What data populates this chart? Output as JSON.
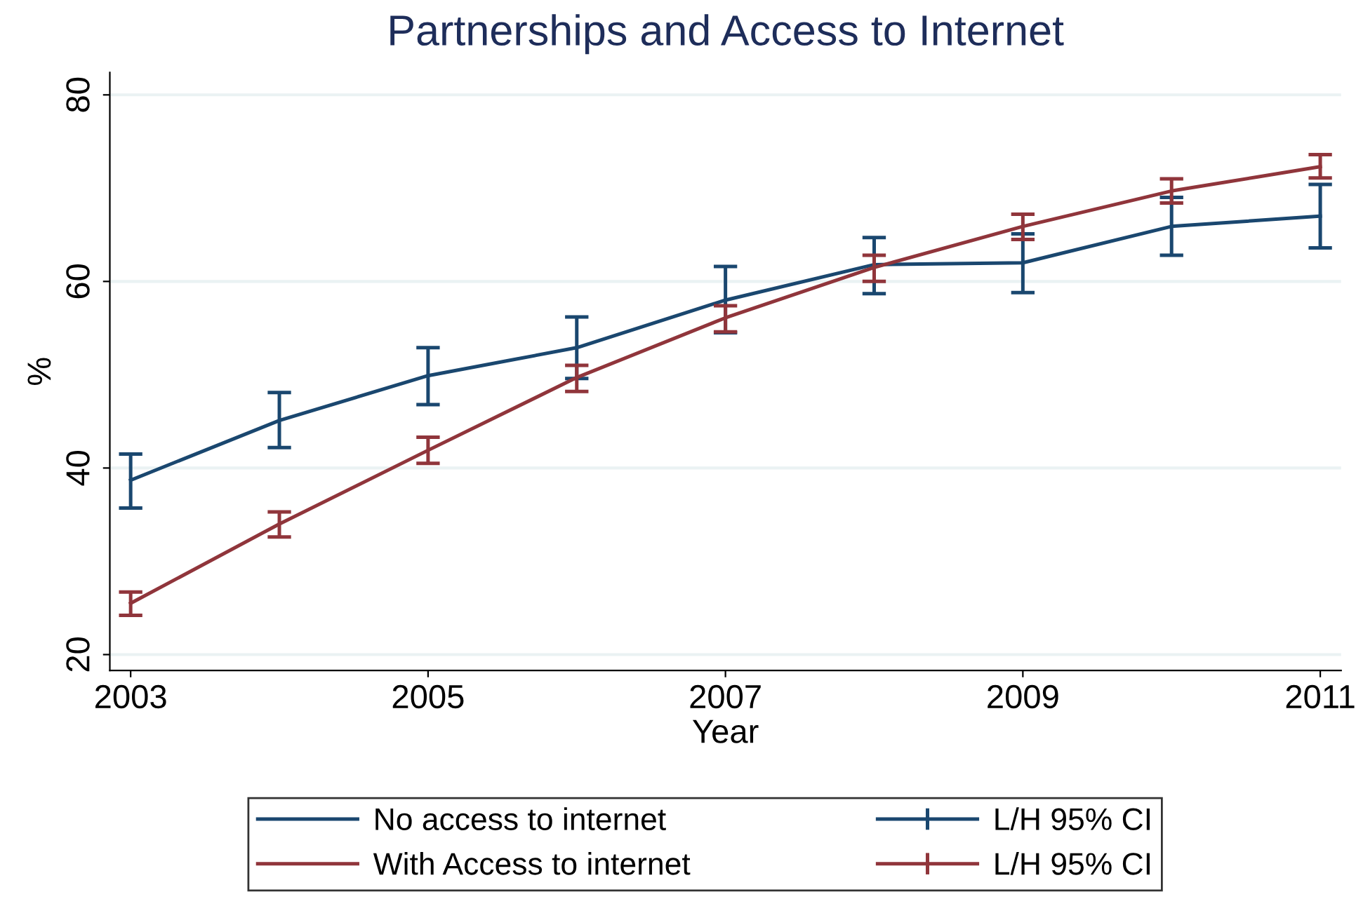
{
  "chart_data": {
    "type": "line",
    "title": "Partnerships and Access to Internet",
    "xlabel": "Year",
    "ylabel": "%",
    "x": [
      2003,
      2004,
      2005,
      2006,
      2007,
      2008,
      2009,
      2010,
      2011
    ],
    "series": [
      {
        "name": "No access to internet",
        "color": "#1a476f",
        "values": [
          38.7,
          45.1,
          49.9,
          52.9,
          58.0,
          61.8,
          62.0,
          65.9,
          67.0
        ],
        "errors": [
          [
            35.7,
            41.5
          ],
          [
            42.2,
            48.1
          ],
          [
            46.8,
            52.9
          ],
          [
            49.6,
            56.2
          ],
          [
            54.5,
            61.6
          ],
          [
            58.7,
            64.7
          ],
          [
            58.8,
            65.1
          ],
          [
            62.8,
            69.0
          ],
          [
            63.6,
            70.4
          ]
        ]
      },
      {
        "name": "With Access to internet",
        "color": "#90353b",
        "values": [
          25.5,
          34.0,
          41.9,
          49.7,
          56.1,
          61.5,
          65.9,
          69.7,
          72.3
        ],
        "errors": [
          [
            24.2,
            26.7
          ],
          [
            32.6,
            35.3
          ],
          [
            40.5,
            43.3
          ],
          [
            48.2,
            51.0
          ],
          [
            54.6,
            57.4
          ],
          [
            60.0,
            62.8
          ],
          [
            64.5,
            67.2
          ],
          [
            68.4,
            71.0
          ],
          [
            71.1,
            73.6
          ]
        ]
      }
    ],
    "annotations": [
      "L/H 95% CI",
      "L/H 95% CI"
    ],
    "xlim": [
      2002.86,
      2011.14
    ],
    "xticks": [
      2003,
      2005,
      2007,
      2009,
      2011
    ],
    "ylim": [
      18.3,
      82.4
    ],
    "yticks": [
      20,
      40,
      60,
      80
    ],
    "grid": "y",
    "legend": "bottom",
    "marker": "none",
    "line_style": "solid"
  }
}
